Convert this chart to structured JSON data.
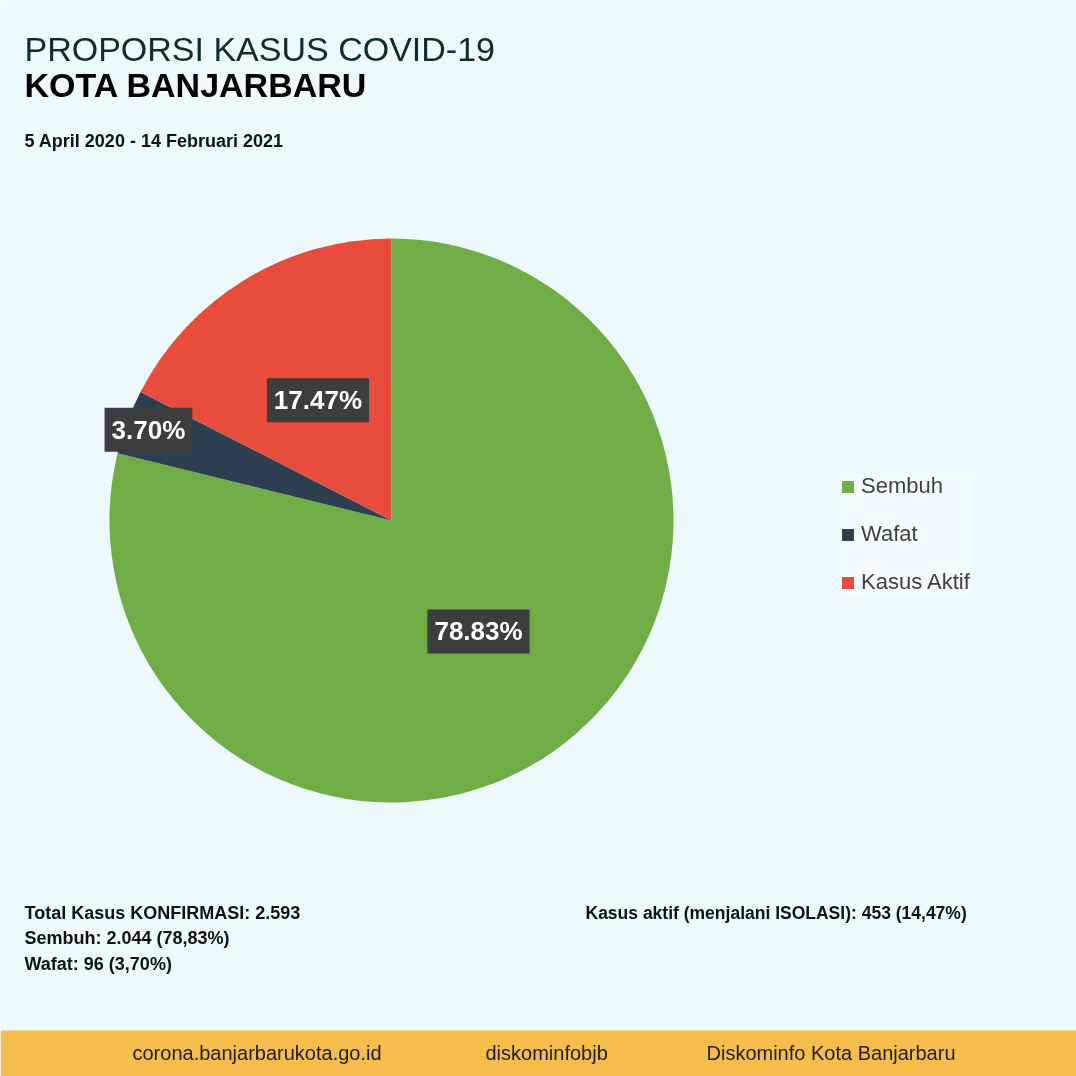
{
  "chart_data": {
    "type": "pie",
    "title": "PROPORSI KASUS COVID-19\nKOTA BANJARBARU",
    "subtitle": "5 April 2020 - 14 Februari 2021",
    "categories": [
      "Sembuh",
      "Wafat",
      "Kasus Aktif"
    ],
    "values": [
      78.83,
      3.7,
      17.47
    ],
    "colors": [
      "#70ad47",
      "#2c3e50",
      "#e74c3c"
    ],
    "value_labels": [
      "78.83%",
      "3.70%",
      "17.47%"
    ],
    "legend": "right",
    "annotations": [
      "Total Kasus KONFIRMASI: 2.593",
      "Sembuh: 2.044 (78,83%)",
      "Wafat: 96 (3,70%)",
      "Kasus aktif (menjalani ISOLASI): 453 (14,47%)",
      "corona.banjarbarukota.go.id",
      "diskominfobjb",
      "Diskominfo Kota Banjarbaru"
    ]
  }
}
